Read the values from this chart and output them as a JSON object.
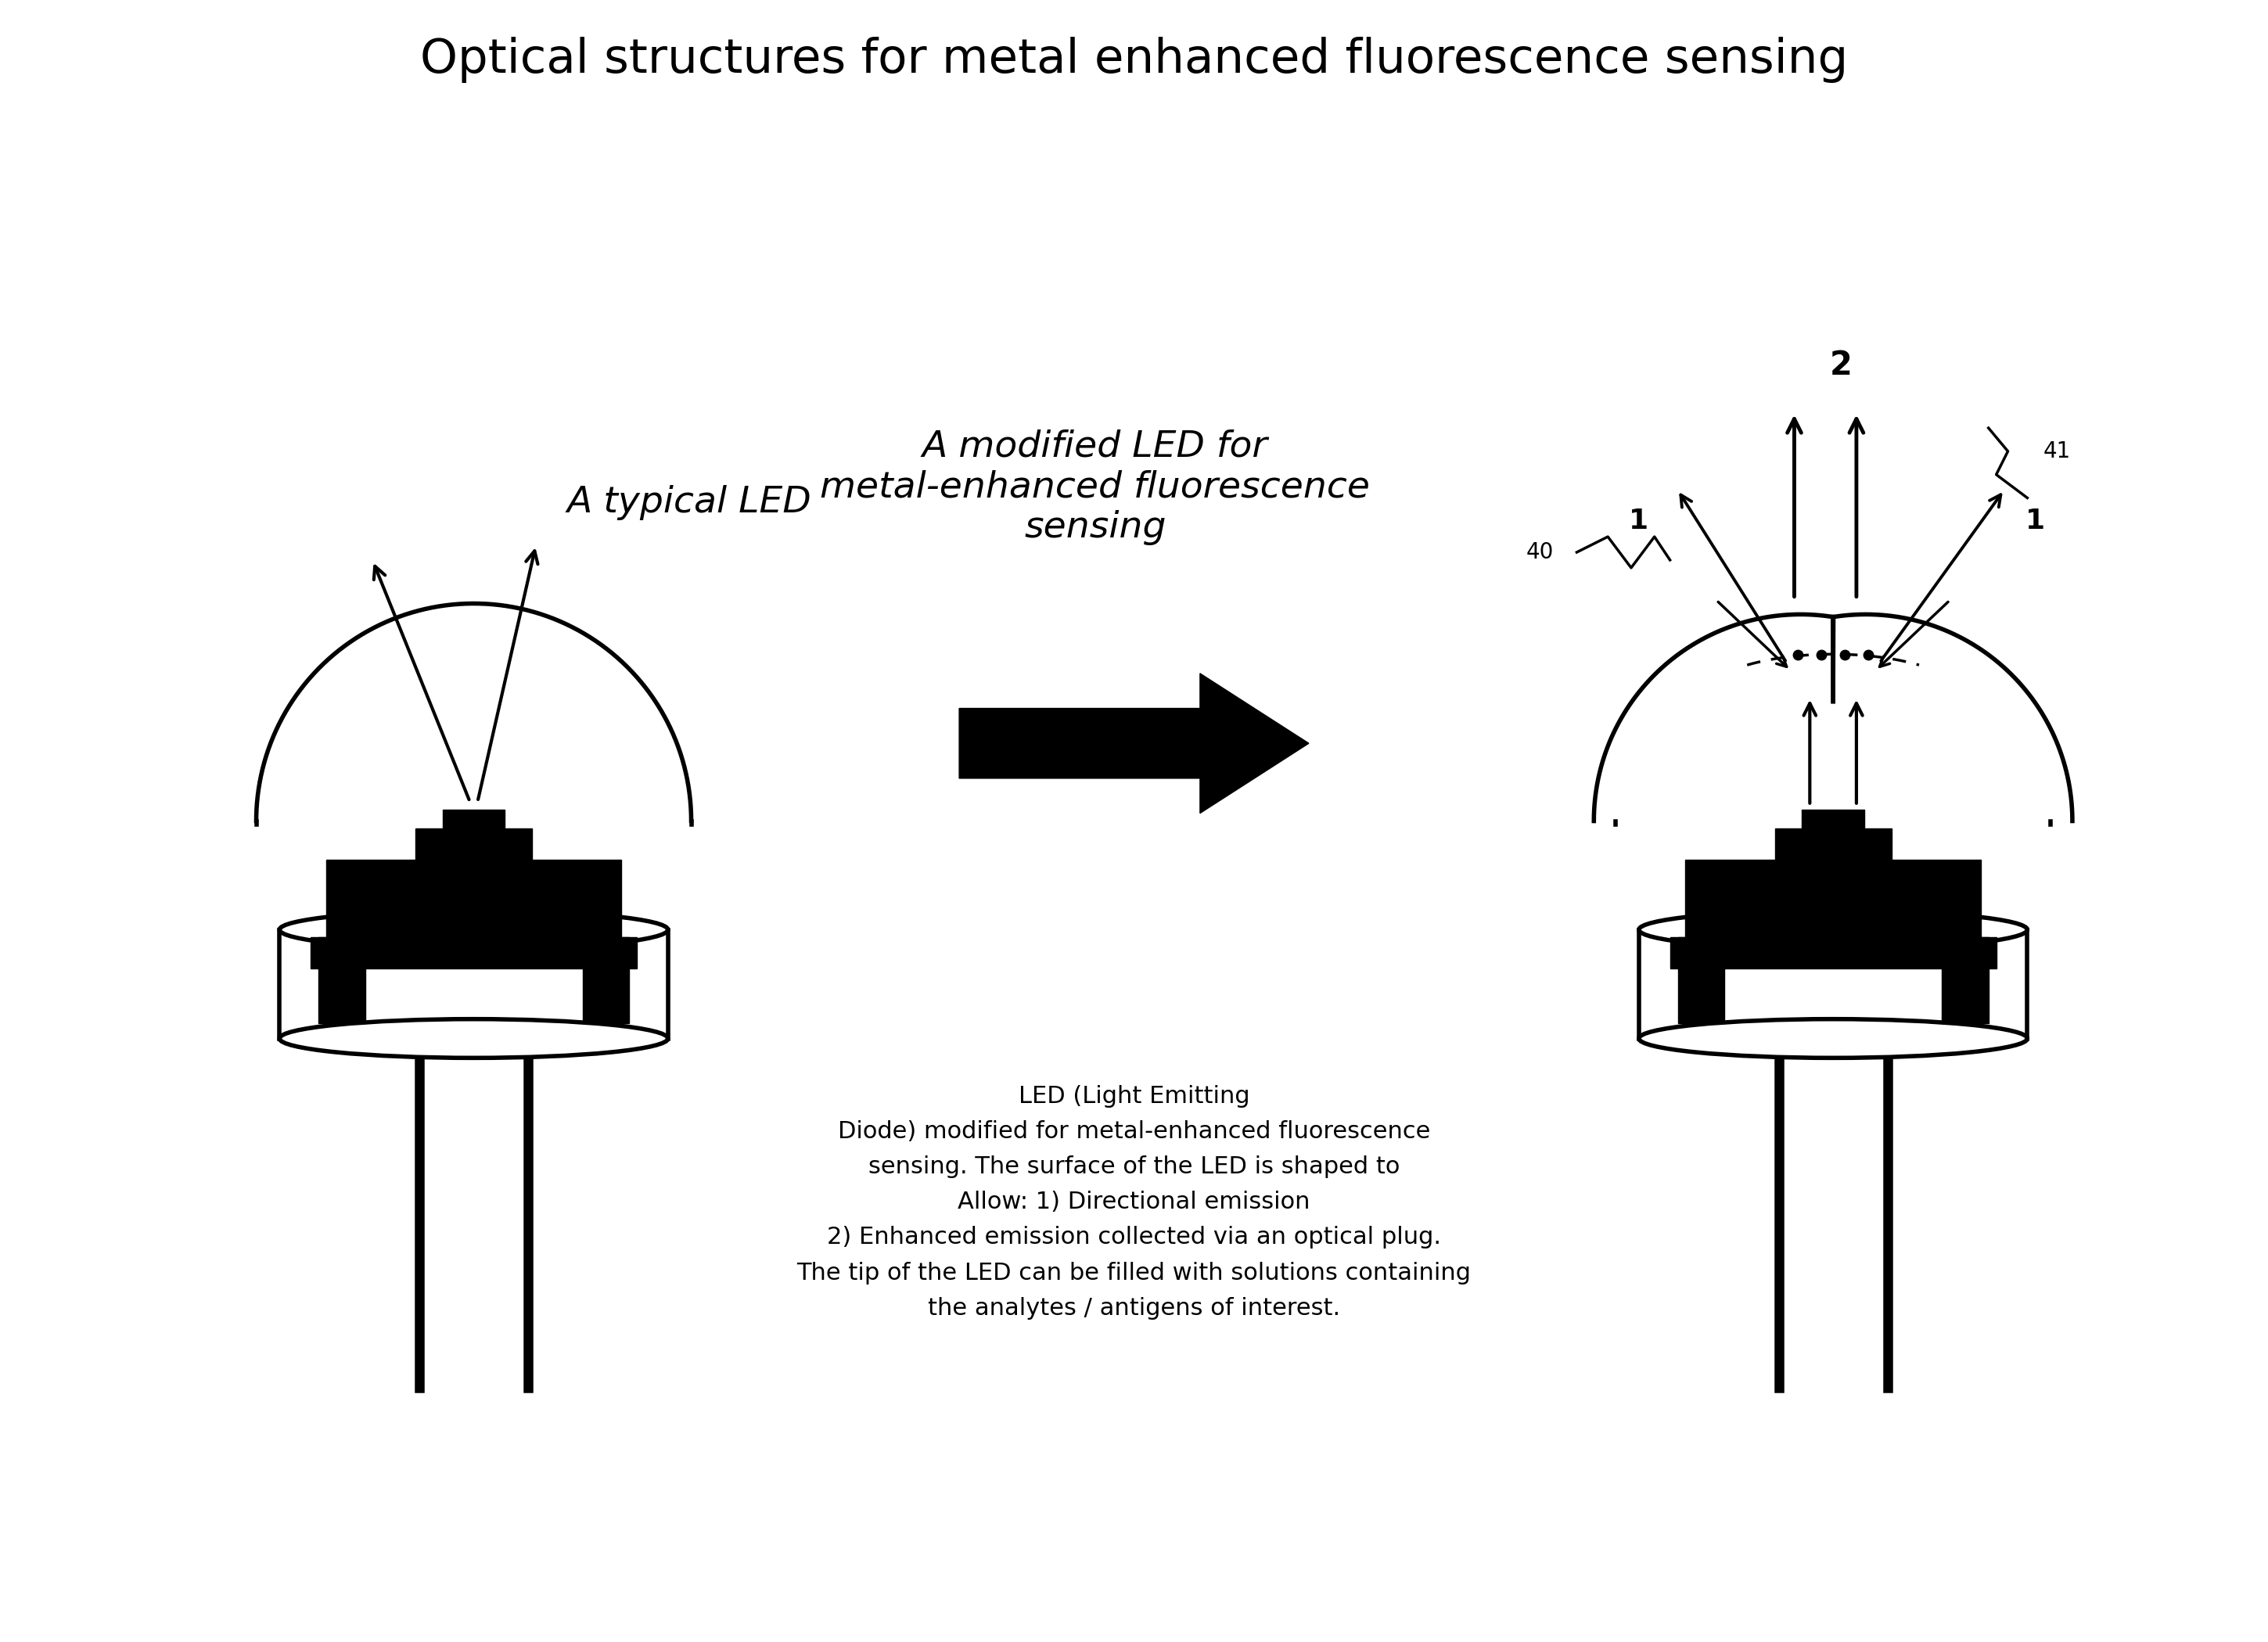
{
  "title": "Optical structures for metal enhanced fluorescence sensing",
  "title_fontsize": 44,
  "label_led1": "A typical LED",
  "label_led1_fontsize": 34,
  "label_led2": "A modified LED for\nmetal-enhanced fluorescence\nsensing",
  "label_led2_fontsize": 34,
  "caption": "LED (Light Emitting\nDiode) modified for metal-enhanced fluorescence\nsensing. The surface of the LED is shaped to\nAllow: 1) Directional emission\n2) Enhanced emission collected via an optical plug.\nThe tip of the LED can be filled with solutions containing\nthe analytes / antigens of interest.",
  "caption_fontsize": 22,
  "bg_color": "#ffffff",
  "line_color": "#000000"
}
